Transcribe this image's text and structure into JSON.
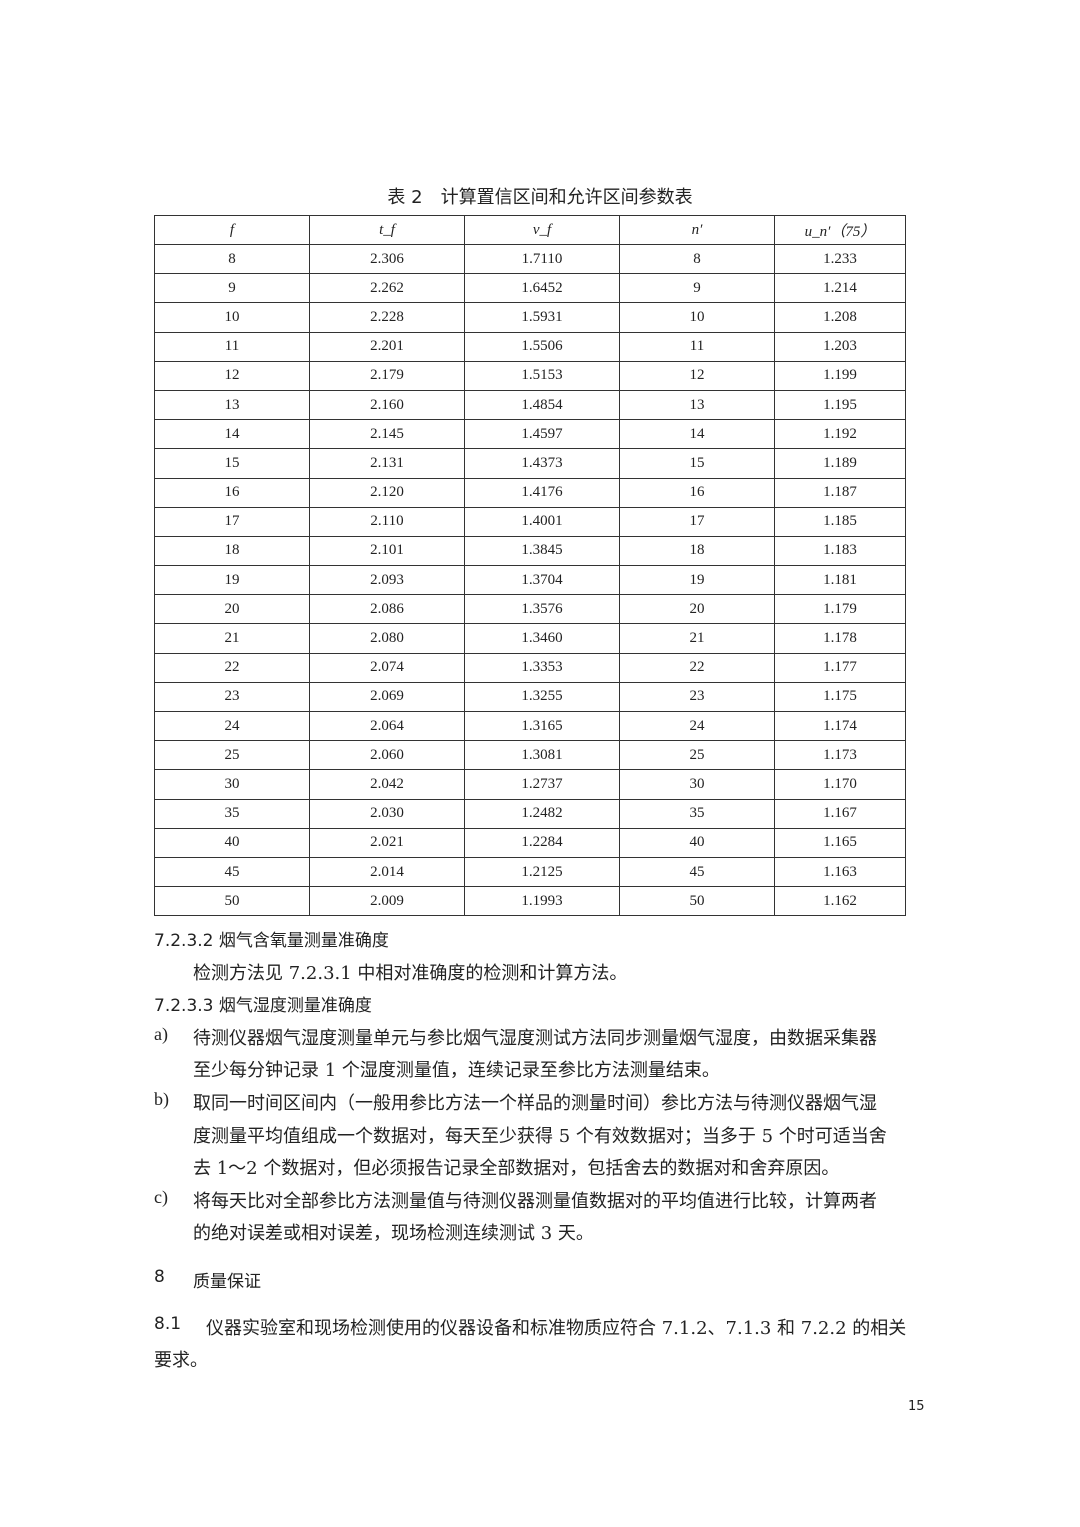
{
  "table": {
    "caption": "表 2　计算置信区间和允许区间参数表",
    "headers": [
      "f",
      "t_f",
      "v_f",
      "n′",
      "u_n′（75）"
    ],
    "rows": [
      [
        "8",
        "2.306",
        "1.7110",
        "8",
        "1.233"
      ],
      [
        "9",
        "2.262",
        "1.6452",
        "9",
        "1.214"
      ],
      [
        "10",
        "2.228",
        "1.5931",
        "10",
        "1.208"
      ],
      [
        "11",
        "2.201",
        "1.5506",
        "11",
        "1.203"
      ],
      [
        "12",
        "2.179",
        "1.5153",
        "12",
        "1.199"
      ],
      [
        "13",
        "2.160",
        "1.4854",
        "13",
        "1.195"
      ],
      [
        "14",
        "2.145",
        "1.4597",
        "14",
        "1.192"
      ],
      [
        "15",
        "2.131",
        "1.4373",
        "15",
        "1.189"
      ],
      [
        "16",
        "2.120",
        "1.4176",
        "16",
        "1.187"
      ],
      [
        "17",
        "2.110",
        "1.4001",
        "17",
        "1.185"
      ],
      [
        "18",
        "2.101",
        "1.3845",
        "18",
        "1.183"
      ],
      [
        "19",
        "2.093",
        "1.3704",
        "19",
        "1.181"
      ],
      [
        "20",
        "2.086",
        "1.3576",
        "20",
        "1.179"
      ],
      [
        "21",
        "2.080",
        "1.3460",
        "21",
        "1.178"
      ],
      [
        "22",
        "2.074",
        "1.3353",
        "22",
        "1.177"
      ],
      [
        "23",
        "2.069",
        "1.3255",
        "23",
        "1.175"
      ],
      [
        "24",
        "2.064",
        "1.3165",
        "24",
        "1.174"
      ],
      [
        "25",
        "2.060",
        "1.3081",
        "25",
        "1.173"
      ],
      [
        "30",
        "2.042",
        "1.2737",
        "30",
        "1.170"
      ],
      [
        "35",
        "2.030",
        "1.2482",
        "35",
        "1.167"
      ],
      [
        "40",
        "2.021",
        "1.2284",
        "40",
        "1.165"
      ],
      [
        "45",
        "2.014",
        "1.2125",
        "45",
        "1.163"
      ],
      [
        "50",
        "2.009",
        "1.1993",
        "50",
        "1.162"
      ]
    ]
  },
  "s7232": {
    "heading": "7.2.3.2  烟气含氧量测量准确度",
    "body": "检测方法见 7.2.3.1 中相对准确度的检测和计算方法。"
  },
  "s7233": {
    "heading": "7.2.3.3  烟气湿度测量准确度",
    "items": [
      {
        "label": "a)",
        "lines": [
          "待测仪器烟气湿度测量单元与参比烟气湿度测试方法同步测量烟气湿度，由数据采集器",
          "至少每分钟记录 1 个湿度测量值，连续记录至参比方法测量结束。"
        ]
      },
      {
        "label": "b)",
        "lines": [
          "取同一时间区间内（一般用参比方法一个样品的测量时间）参比方法与待测仪器烟气湿",
          "度测量平均值组成一个数据对，每天至少获得 5 个有效数据对；当多于 5 个时可适当舍",
          "去 1～2 个数据对，但必须报告记录全部数据对，包括舍去的数据对和舍弃原因。"
        ]
      },
      {
        "label": "c)",
        "lines": [
          "将每天比对全部参比方法测量值与待测仪器测量值数据对的平均值进行比较，计算两者",
          "的绝对误差或相对误差，现场检测连续测试 3 天。"
        ]
      }
    ]
  },
  "s8": {
    "num": "8",
    "title": "质量保证"
  },
  "s81": {
    "num": "8.1",
    "line1": "仪器实验室和现场检测使用的仪器设备和标准物质应符合 7.1.2、7.1.3 和 7.2.2 的相关",
    "line2": "要求。"
  },
  "page_number": "15"
}
